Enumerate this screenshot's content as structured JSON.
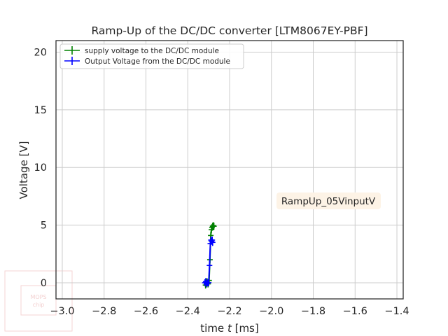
{
  "chart_data": {
    "type": "line",
    "title": "Ramp-Up of the DC/DC converter [LTM8067EY-PBF]",
    "xlabel_prefix": "time ",
    "xlabel_var": "t",
    "xlabel_suffix": " [ms]",
    "ylabel": "Voltage [V]",
    "xlim": [
      -3.03,
      -1.37
    ],
    "ylim": [
      -1.4,
      21
    ],
    "xticks": [
      -3.0,
      -2.8,
      -2.6,
      -2.4,
      -2.2,
      -2.0,
      -1.8,
      -1.6,
      -1.4
    ],
    "xtick_labels": [
      "−3.0",
      "−2.8",
      "−2.6",
      "−2.4",
      "−2.2",
      "−2.0",
      "−1.8",
      "−1.6",
      "−1.4"
    ],
    "yticks": [
      0,
      5,
      10,
      15,
      20
    ],
    "ytick_labels": [
      "0",
      "5",
      "10",
      "15",
      "20"
    ],
    "grid": true,
    "legend_position": "top-left",
    "annotation": "RampUp_05VinputV",
    "series": [
      {
        "name": "supply voltage to the DC/DC module",
        "color": "#008000",
        "x": [
          -2.315,
          -2.312,
          -2.308,
          -2.303,
          -2.298,
          -2.294,
          -2.29,
          -2.287,
          -2.284,
          -2.281,
          -2.278,
          -2.275
        ],
        "y": [
          -0.2,
          0.0,
          0.1,
          -0.1,
          0.2,
          2.0,
          4.1,
          4.6,
          4.8,
          4.9,
          4.95,
          4.9
        ]
      },
      {
        "name": "Output Voltage from the DC/DC module",
        "color": "#0000ff",
        "x": [
          -2.318,
          -2.314,
          -2.31,
          -2.305,
          -2.3,
          -2.296,
          -2.292,
          -2.289,
          -2.286,
          -2.283,
          -2.281
        ],
        "y": [
          0.0,
          0.1,
          -0.1,
          0.0,
          0.0,
          1.5,
          3.4,
          3.7,
          3.6,
          3.7,
          3.5
        ]
      }
    ]
  },
  "watermark": {
    "line1": "MOPS",
    "line2": "chip"
  }
}
